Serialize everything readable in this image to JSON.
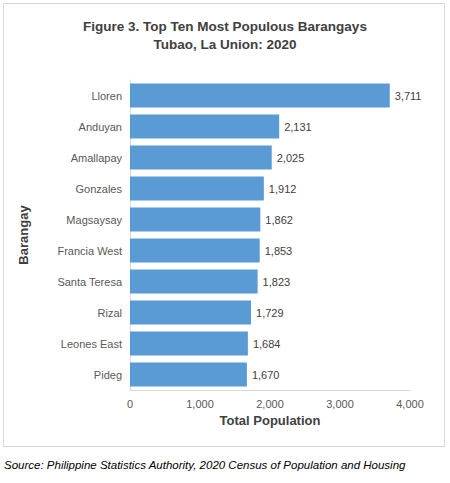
{
  "chart_data": {
    "type": "bar",
    "orientation": "horizontal",
    "title": "Figure 3. Top Ten Most Populous Barangays\nTubao, La Union: 2020",
    "x_label": "Total Population",
    "y_label": "Barangay",
    "categories": [
      "Lloren",
      "Anduyan",
      "Amallapay",
      "Gonzales",
      "Magsaysay",
      "Francia West",
      "Santa Teresa",
      "Rizal",
      "Leones East",
      "Pideg"
    ],
    "values": [
      3711,
      2131,
      2025,
      1912,
      1862,
      1853,
      1823,
      1729,
      1684,
      1670
    ],
    "value_labels": [
      "3,711",
      "2,131",
      "2,025",
      "1,912",
      "1,862",
      "1,853",
      "1,823",
      "1,729",
      "1,684",
      "1,670"
    ],
    "color": "#5b9bd5",
    "xlim": [
      0,
      4000
    ],
    "xticks": [
      0,
      {
        "value": 1000,
        "label": "1,000"
      },
      {
        "value": 2000,
        "label": "2,000"
      },
      {
        "value": 3000,
        "label": "3,000"
      },
      {
        "value": 4000,
        "label": "4,000"
      }
    ],
    "grid": false,
    "data_labels": true,
    "caption": "Source: Philippine Statistics Authority, 2020 Census of Population and Housing"
  }
}
